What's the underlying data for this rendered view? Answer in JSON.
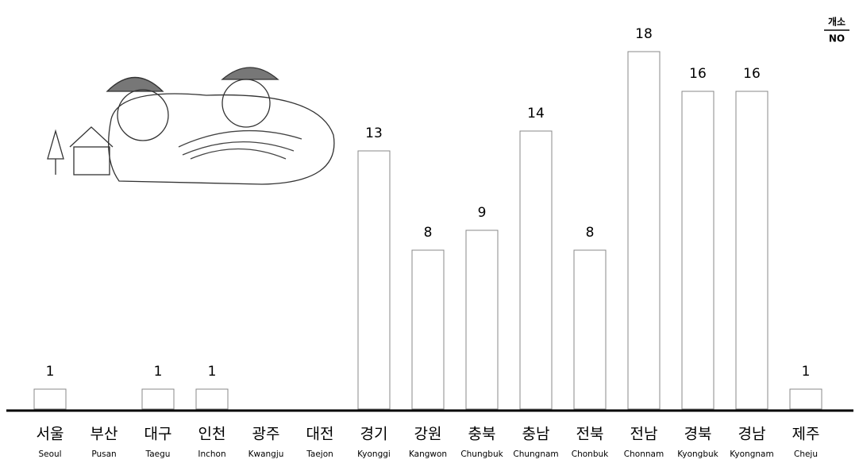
{
  "chart_data": {
    "type": "bar",
    "categories": [
      "서울",
      "부산",
      "대구",
      "인천",
      "광주",
      "대전",
      "경기",
      "강원",
      "충북",
      "충남",
      "전북",
      "전남",
      "경북",
      "경남",
      "제주"
    ],
    "category_subtitles": [
      "Seoul",
      "Pusan",
      "Taegu",
      "Inchon",
      "Kwangju",
      "Taejon",
      "Kyonggi",
      "Kangwon",
      "Chungbuk",
      "Chungnam",
      "Chonbuk",
      "Chonnam",
      "Kyongbuk",
      "Kyongnam",
      "Cheju"
    ],
    "values": [
      1,
      null,
      1,
      1,
      null,
      null,
      13,
      8,
      9,
      14,
      8,
      18,
      16,
      16,
      1
    ],
    "unit_label": {
      "top": "개소",
      "bottom": "NO"
    },
    "color": "#ffffff"
  }
}
